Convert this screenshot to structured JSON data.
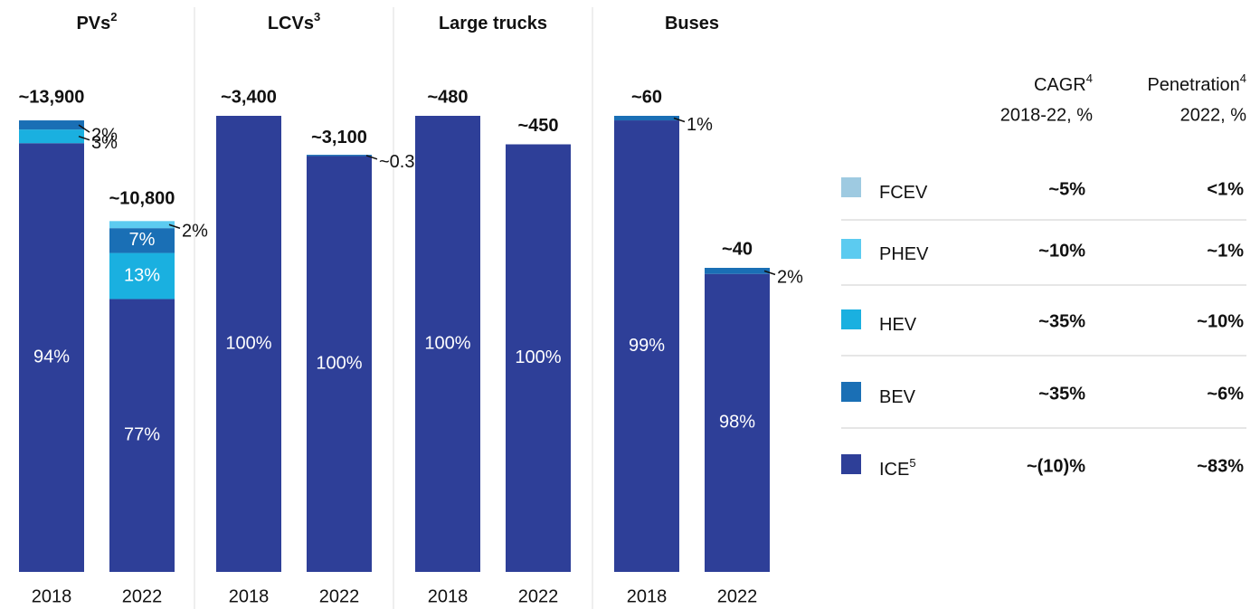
{
  "chart_data": [
    {
      "type": "bar",
      "title": "PVs",
      "title_note": "2",
      "categories": [
        "2018",
        "2022"
      ],
      "values": [
        13900,
        10800
      ],
      "value_labels": [
        "~13,900",
        "~10,800"
      ],
      "series": [
        {
          "name": "ICE",
          "color": "#2e3f98",
          "values": [
            94,
            77
          ],
          "value_labels": [
            "94%",
            "77%"
          ]
        },
        {
          "name": "HEV",
          "color": "#1ab0e0",
          "values": [
            3,
            13
          ],
          "value_labels": [
            "3%",
            "13%"
          ]
        },
        {
          "name": "BEV",
          "color": "#1a6fb5",
          "values": [
            2,
            7
          ],
          "value_labels": [
            "2%",
            "7%"
          ]
        },
        {
          "name": "PHEV",
          "color": "#5ccbf0",
          "values": [
            null,
            2
          ],
          "value_labels": [
            null,
            "2%"
          ]
        }
      ]
    },
    {
      "type": "bar",
      "title": "LCVs",
      "title_note": "3",
      "categories": [
        "2018",
        "2022"
      ],
      "values": [
        3400,
        3100
      ],
      "value_labels": [
        "~3,400",
        "~3,100"
      ],
      "series": [
        {
          "name": "ICE",
          "color": "#2e3f98",
          "values": [
            100,
            100
          ],
          "value_labels": [
            "100%",
            "100%"
          ]
        },
        {
          "name": "BEV",
          "color": "#1a6fb5",
          "values": [
            null,
            0.3
          ],
          "value_labels": [
            null,
            "~0.3%"
          ]
        }
      ]
    },
    {
      "type": "bar",
      "title": "Large trucks",
      "categories": [
        "2018",
        "2022"
      ],
      "values": [
        480,
        450
      ],
      "value_labels": [
        "~480",
        "~450"
      ],
      "series": [
        {
          "name": "ICE",
          "color": "#2e3f98",
          "values": [
            100,
            100
          ],
          "value_labels": [
            "100%",
            "100%"
          ]
        }
      ]
    },
    {
      "type": "bar",
      "title": "Buses",
      "categories": [
        "2018",
        "2022"
      ],
      "values": [
        60,
        40
      ],
      "value_labels": [
        "~60",
        "~40"
      ],
      "series": [
        {
          "name": "ICE",
          "color": "#2e3f98",
          "values": [
            99,
            98
          ],
          "value_labels": [
            "99%",
            "98%"
          ]
        },
        {
          "name": "BEV",
          "color": "#1a6fb5",
          "values": [
            1,
            2
          ],
          "value_labels": [
            "1%",
            "2%"
          ]
        }
      ]
    }
  ],
  "table": {
    "columns": [
      {
        "title": "CAGR",
        "note": "4",
        "subtitle": "2018-22, %"
      },
      {
        "title": "Penetration",
        "note": "4",
        "subtitle": "2022, %"
      }
    ],
    "rows": [
      {
        "name": "FCEV",
        "color": "#9ecae1",
        "cells": [
          "~5%",
          "<1%"
        ]
      },
      {
        "name": "PHEV",
        "color": "#5ccbf0",
        "cells": [
          "~10%",
          "~1%"
        ]
      },
      {
        "name": "HEV",
        "color": "#1ab0e0",
        "cells": [
          "~35%",
          "~10%"
        ]
      },
      {
        "name": "BEV",
        "color": "#1a6fb5",
        "cells": [
          "~35%",
          "~6%"
        ]
      },
      {
        "name": "ICE",
        "note": "5",
        "color": "#2e3f98",
        "cells": [
          "~(10)%",
          "~83%"
        ]
      }
    ]
  }
}
